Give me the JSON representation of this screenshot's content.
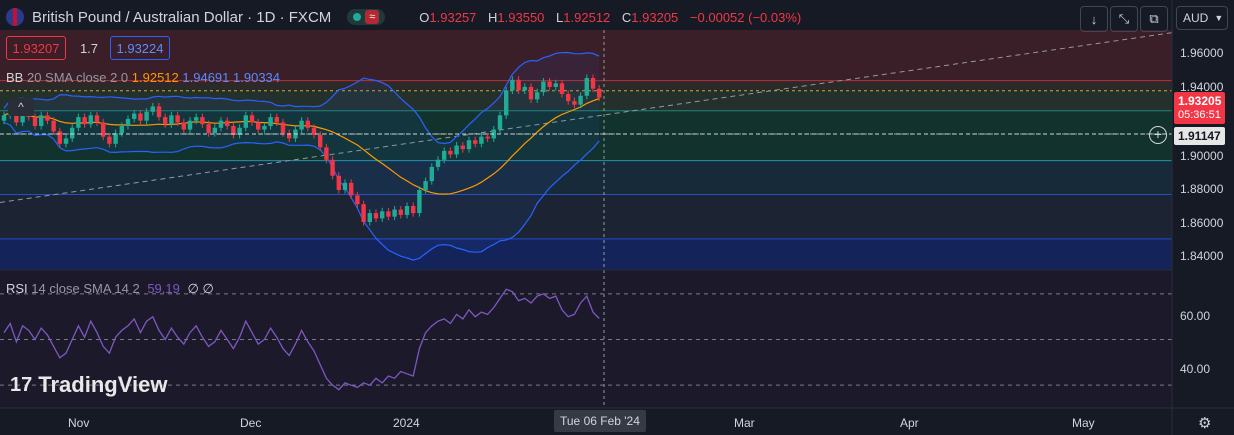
{
  "header": {
    "symbol": "British Pound / Australian Dollar · 1D · FXCM",
    "live_icon": "market-open-dot",
    "wave_icon": "≈",
    "open_key": "O",
    "open": "1.93257",
    "high_key": "H",
    "high": "1.93550",
    "low_key": "L",
    "low": "1.92512",
    "close_key": "C",
    "close": "1.93205",
    "change": "−0.00052 (−0.03%)"
  },
  "toolbar": {
    "down_label": "↓",
    "expand_label": "⤡",
    "screen_label": "⧉",
    "currency": "AUD"
  },
  "quote": {
    "sell": "1.93207",
    "spread": "1.7",
    "buy": "1.93224"
  },
  "bb_legend": {
    "name": "BB",
    "params": "20 SMA close 2 0",
    "basis": "1.92512",
    "upper": "1.94691",
    "lower": "1.90334"
  },
  "rsi_legend": {
    "name": "RSI",
    "params": "14 close SMA 14 2",
    "value": "59.19",
    "extra1": "∅",
    "extra2": "∅"
  },
  "price_axis": {
    "ticks": [
      "1.96000",
      "1.94000",
      "1.90000",
      "1.88000",
      "1.86000",
      "1.84000"
    ],
    "last_price": "1.93205",
    "countdown": "05:36:51",
    "crosshair_price": "1.91147"
  },
  "rsi_axis": {
    "ticks": [
      "60.00",
      "40.00"
    ]
  },
  "time_axis": {
    "labels": [
      "Nov",
      "Dec",
      "2024",
      "Mar",
      "Apr",
      "May"
    ],
    "crosshair_date": "Tue 06 Feb '24"
  },
  "branding": {
    "logo_text": "TradingView"
  },
  "colors": {
    "up": "#22ab94",
    "down": "#f23645",
    "bb": "#2962ff",
    "basis": "#ff9800",
    "rsi": "#7e57c2"
  },
  "chart_data": [
    {
      "type": "candlestick",
      "symbol": "GBPAUD",
      "timeframe": "1D",
      "ylim": [
        1.835,
        1.97
      ],
      "close": [
        1.922,
        1.925,
        1.918,
        1.924,
        1.921,
        1.916,
        1.922,
        1.919,
        1.913,
        1.906,
        1.909,
        1.915,
        1.921,
        1.917,
        1.922,
        1.918,
        1.91,
        1.906,
        1.912,
        1.916,
        1.92,
        1.923,
        1.919,
        1.924,
        1.927,
        1.921,
        1.917,
        1.922,
        1.918,
        1.914,
        1.919,
        1.921,
        1.917,
        1.912,
        1.915,
        1.919,
        1.916,
        1.911,
        1.915,
        1.922,
        1.918,
        1.914,
        1.916,
        1.921,
        1.918,
        1.912,
        1.909,
        1.914,
        1.919,
        1.915,
        1.911,
        1.904,
        1.897,
        1.888,
        1.88,
        1.884,
        1.877,
        1.872,
        1.862,
        1.867,
        1.864,
        1.868,
        1.865,
        1.869,
        1.866,
        1.871,
        1.867,
        1.88,
        1.885,
        1.893,
        1.897,
        1.902,
        1.9,
        1.905,
        1.903,
        1.908,
        1.906,
        1.91,
        1.909,
        1.914,
        1.922,
        1.936,
        1.942,
        1.936,
        1.938,
        1.931,
        1.935,
        1.941,
        1.938,
        1.94,
        1.934,
        1.93,
        1.928,
        1.933,
        1.943,
        1.937,
        1.932
      ],
      "bb_upper_end": 1.94691,
      "bb_basis_end": 1.92512,
      "bb_lower_end": 1.90334,
      "horizontal_levels": [
        1.9415,
        1.9358,
        1.9246,
        1.9115,
        1.8965,
        1.8775,
        1.8525
      ]
    },
    {
      "type": "line",
      "name": "RSI",
      "ylim": [
        20,
        80
      ],
      "levels": [
        70,
        50,
        30
      ],
      "values": [
        53,
        57,
        49,
        56,
        54,
        50,
        55,
        52,
        47,
        42,
        44,
        50,
        56,
        51,
        58,
        53,
        47,
        44,
        51,
        54,
        56,
        59,
        53,
        58,
        60,
        54,
        50,
        55,
        51,
        48,
        53,
        56,
        51,
        47,
        49,
        54,
        50,
        46,
        51,
        58,
        53,
        48,
        50,
        55,
        51,
        46,
        43,
        48,
        54,
        49,
        45,
        39,
        33,
        30,
        28,
        31,
        30,
        29,
        31,
        30,
        33,
        31,
        34,
        33,
        36,
        35,
        34,
        46,
        53,
        56,
        58,
        59,
        57,
        61,
        59,
        63,
        60,
        62,
        61,
        64,
        68,
        72,
        71,
        67,
        68,
        66,
        69,
        70,
        68,
        69,
        63,
        60,
        61,
        66,
        69,
        62,
        59.19
      ]
    }
  ]
}
